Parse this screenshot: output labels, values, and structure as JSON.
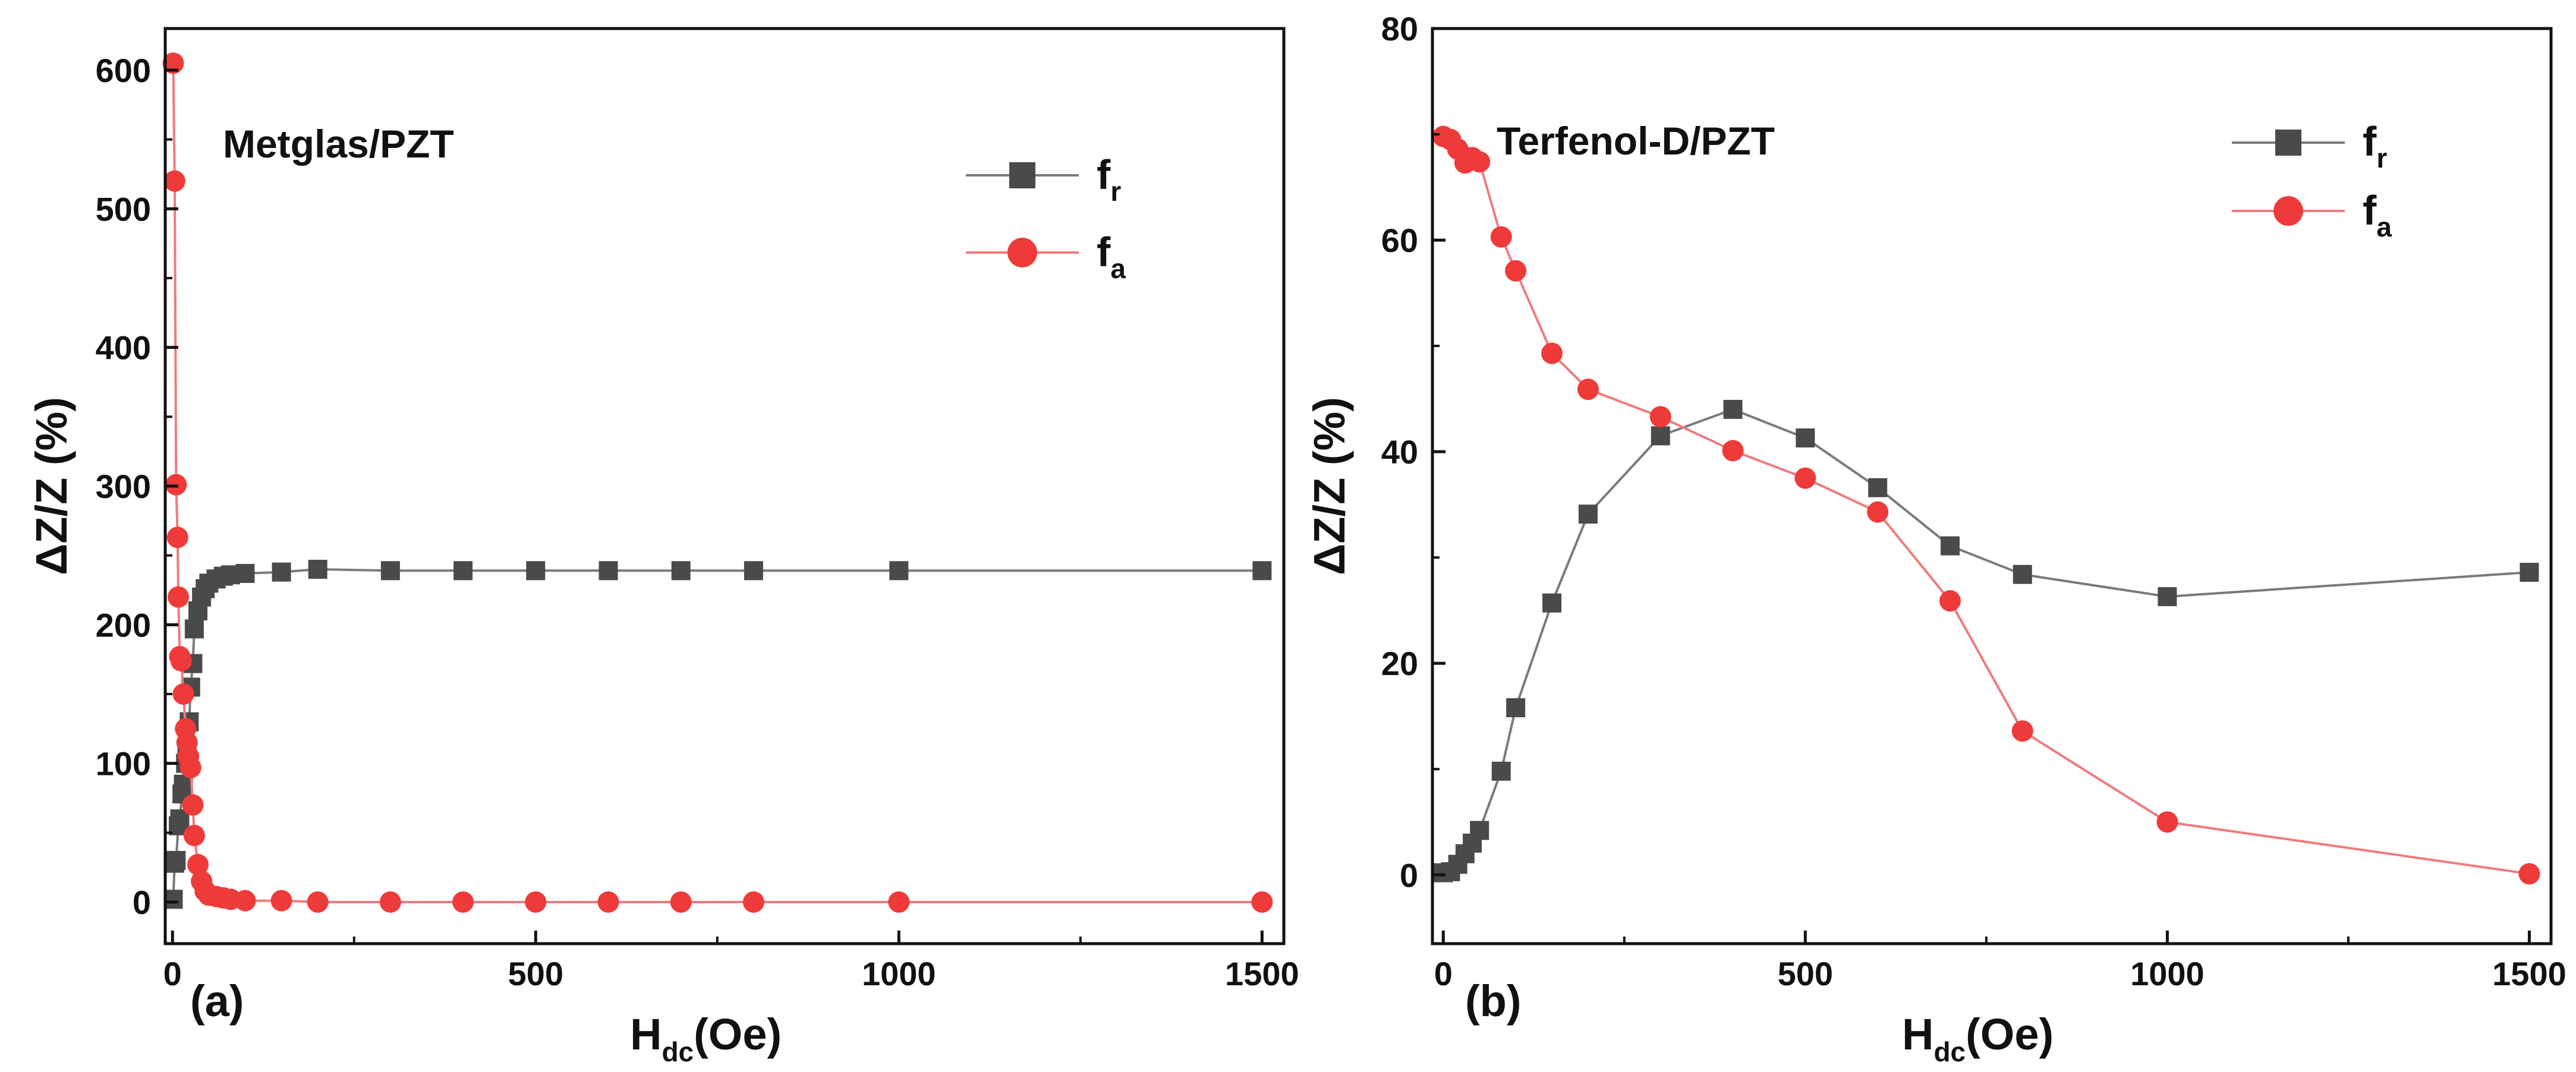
{
  "colors": {
    "fr_line": "#7a7a7a",
    "fr_marker": "#4a4a4a",
    "fa_line": "#f07b7b",
    "fa_marker": "#ef3a3a",
    "axis": "#111111"
  },
  "chart_data": [
    {
      "type": "line",
      "panel_label": "(a)",
      "title": "Metglas/PZT",
      "xlabel": {
        "main": "H",
        "sub": "dc",
        "unit": "(Oe)"
      },
      "ylabel": "ΔZ/Z (%)",
      "xlim": [
        -10,
        1530
      ],
      "ylim": [
        -30,
        630
      ],
      "xticks": [
        0,
        500,
        1000,
        1500
      ],
      "yticks": [
        0,
        100,
        200,
        300,
        400,
        500,
        600
      ],
      "legend_position": "top-right",
      "series": [
        {
          "name": "f",
          "sub": "r",
          "marker": "square",
          "x": [
            1,
            3,
            5,
            8,
            10,
            13,
            15,
            18,
            20,
            23,
            25,
            28,
            30,
            35,
            40,
            45,
            50,
            60,
            70,
            80,
            100,
            150,
            200,
            300,
            400,
            500,
            600,
            700,
            800,
            1000,
            1500
          ],
          "y": [
            2,
            28,
            30,
            55,
            60,
            78,
            85,
            100,
            110,
            130,
            155,
            172,
            197,
            210,
            220,
            226,
            230,
            233,
            235,
            236,
            237,
            238,
            240,
            239,
            239,
            239,
            239,
            239,
            239,
            239,
            239
          ]
        },
        {
          "name": "f",
          "sub": "a",
          "marker": "circle",
          "x": [
            1,
            3,
            5,
            7,
            8,
            10,
            12,
            15,
            18,
            20,
            22,
            25,
            28,
            30,
            35,
            40,
            45,
            50,
            60,
            70,
            80,
            100,
            150,
            200,
            300,
            400,
            500,
            600,
            700,
            800,
            1000,
            1500
          ],
          "y": [
            605,
            520,
            301,
            263,
            220,
            177,
            174,
            150,
            125,
            115,
            105,
            97,
            70,
            48,
            27,
            15,
            8,
            5,
            4,
            3,
            2,
            1,
            1,
            0,
            0,
            0,
            0,
            0,
            0,
            0,
            0,
            0
          ]
        }
      ]
    },
    {
      "type": "line",
      "panel_label": "(b)",
      "title": "Terfenol-D/PZT",
      "xlabel": {
        "main": "H",
        "sub": "dc",
        "unit": "(Oe)"
      },
      "ylabel": "ΔZ/Z (%)",
      "xlim": [
        -15,
        1530
      ],
      "ylim": [
        -6.5,
        80
      ],
      "xticks": [
        0,
        500,
        1000,
        1500
      ],
      "yticks": [
        0,
        20,
        40,
        60,
        80
      ],
      "legend_position": "top-right",
      "series": [
        {
          "name": "f",
          "sub": "r",
          "marker": "square",
          "x": [
            0,
            10,
            20,
            30,
            40,
            50,
            80,
            100,
            150,
            200,
            300,
            400,
            500,
            600,
            700,
            800,
            1000,
            1500
          ],
          "y": [
            0.2,
            0.3,
            1.0,
            2.0,
            3.0,
            4.2,
            9.8,
            15.8,
            25.7,
            34.1,
            41.5,
            44.0,
            41.3,
            36.6,
            31.1,
            28.4,
            26.3,
            28.6
          ]
        },
        {
          "name": "f",
          "sub": "a",
          "marker": "circle",
          "x": [
            0,
            10,
            20,
            30,
            40,
            50,
            80,
            100,
            150,
            200,
            300,
            400,
            500,
            600,
            700,
            800,
            1000,
            1500
          ],
          "y": [
            69.8,
            69.5,
            68.6,
            67.3,
            67.8,
            67.4,
            60.3,
            57.1,
            49.3,
            45.9,
            43.3,
            40.1,
            37.5,
            34.3,
            25.9,
            13.6,
            5.0,
            0.1
          ]
        }
      ]
    }
  ]
}
